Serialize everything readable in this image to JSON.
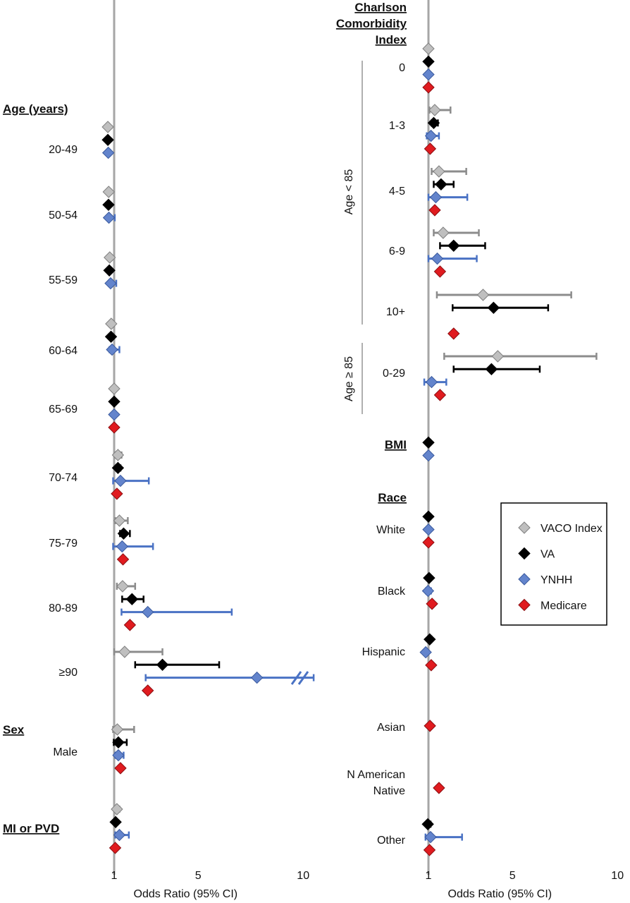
{
  "chart_data": [
    {
      "type": "forest",
      "panel": "left",
      "xlabel": "Odds Ratio (95% CI)",
      "x_ticks": [
        "1",
        "5",
        "10"
      ],
      "xlim": [
        0.6,
        10.5
      ],
      "series_names": [
        "VACO Index",
        "VA",
        "YNHH",
        "Medicare"
      ],
      "colors": {
        "VACO Index": "#a6a6a6",
        "VA": "#000000",
        "YNHH": "#5b7fc7",
        "Medicare": "#e0191e"
      },
      "groups": [
        {
          "header": "Age (years)",
          "rows": [
            {
              "label": "20-49",
              "points": [
                {
                  "series": "VACO Index",
                  "or": 0.7
                },
                {
                  "series": "VA",
                  "or": 0.7
                },
                {
                  "series": "YNHH",
                  "or": 0.72,
                  "lo": 0.7,
                  "hi": 0.82
                }
              ]
            },
            {
              "label": "50-54",
              "points": [
                {
                  "series": "VACO Index",
                  "or": 0.74,
                  "lo": 0.73,
                  "hi": 0.84
                },
                {
                  "series": "VA",
                  "or": 0.73
                },
                {
                  "series": "YNHH",
                  "or": 0.75,
                  "lo": 0.72,
                  "hi": 1.03
                }
              ]
            },
            {
              "label": "55-59",
              "points": [
                {
                  "series": "VACO Index",
                  "or": 0.79,
                  "lo": 0.77,
                  "hi": 0.86
                },
                {
                  "series": "VA",
                  "or": 0.77
                },
                {
                  "series": "YNHH",
                  "or": 0.83,
                  "lo": 0.75,
                  "hi": 1.1
                }
              ]
            },
            {
              "label": "60-64",
              "points": [
                {
                  "series": "VACO Index",
                  "or": 0.86,
                  "lo": 0.83,
                  "hi": 0.98
                },
                {
                  "series": "VA",
                  "or": 0.85
                },
                {
                  "series": "YNHH",
                  "or": 0.9,
                  "lo": 0.78,
                  "hi": 1.25
                }
              ]
            },
            {
              "label": "65-69",
              "points": [
                {
                  "series": "VACO Index",
                  "or": 1.0
                },
                {
                  "series": "VA",
                  "or": 1.0
                },
                {
                  "series": "YNHH",
                  "or": 1.0
                },
                {
                  "series": "Medicare",
                  "or": 1.0
                }
              ]
            },
            {
              "label": "70-74",
              "points": [
                {
                  "series": "VACO Index",
                  "or": 1.18,
                  "lo": 1.05,
                  "hi": 1.35
                },
                {
                  "series": "VA",
                  "or": 1.18,
                  "lo": 1.1,
                  "hi": 1.3
                },
                {
                  "series": "YNHH",
                  "or": 1.3,
                  "lo": 0.95,
                  "hi": 2.65
                },
                {
                  "series": "Medicare",
                  "or": 1.13
                }
              ]
            },
            {
              "label": "75-79",
              "points": [
                {
                  "series": "VACO Index",
                  "or": 1.25,
                  "lo": 1.05,
                  "hi": 1.65
                },
                {
                  "series": "VA",
                  "or": 1.45,
                  "lo": 1.28,
                  "hi": 1.75
                },
                {
                  "series": "YNHH",
                  "or": 1.38,
                  "lo": 0.95,
                  "hi": 2.85
                },
                {
                  "series": "Medicare",
                  "or": 1.42
                }
              ]
            },
            {
              "label": "80-89",
              "points": [
                {
                  "series": "VACO Index",
                  "or": 1.4,
                  "lo": 1.13,
                  "hi": 2.0
                },
                {
                  "series": "VA",
                  "or": 1.85,
                  "lo": 1.38,
                  "hi": 2.4
                },
                {
                  "series": "YNHH",
                  "or": 2.6,
                  "lo": 1.35,
                  "hi": 6.6
                },
                {
                  "series": "Medicare",
                  "or": 1.75
                }
              ]
            },
            {
              "label": "≥90",
              "points": [
                {
                  "series": "VACO Index",
                  "or": 1.5,
                  "lo": 1.0,
                  "hi": 3.3
                },
                {
                  "series": "VA",
                  "or": 3.3,
                  "lo": 2.0,
                  "hi": 6.0
                },
                {
                  "series": "YNHH",
                  "or": 7.8,
                  "lo": 2.5,
                  "hi": 10.5
                },
                {
                  "series": "Medicare",
                  "or": 2.6
                }
              ]
            }
          ]
        },
        {
          "header": "Sex",
          "rows": [
            {
              "label": "Male",
              "points": [
                {
                  "series": "VACO Index",
                  "or": 1.15,
                  "lo": 0.95,
                  "hi": 1.95
                },
                {
                  "series": "VA",
                  "or": 1.2,
                  "lo": 0.98,
                  "hi": 1.6
                },
                {
                  "series": "YNHH",
                  "or": 1.2,
                  "lo": 1.05,
                  "hi": 1.45
                },
                {
                  "series": "Medicare",
                  "or": 1.3
                }
              ]
            }
          ]
        },
        {
          "header": "MI or PVD",
          "rows": [
            {
              "label": "",
              "points": [
                {
                  "series": "VACO Index",
                  "or": 1.13,
                  "lo": 1.05,
                  "hi": 1.25
                },
                {
                  "series": "VA",
                  "or": 1.07
                },
                {
                  "series": "YNHH",
                  "or": 1.25,
                  "lo": 1.05,
                  "hi": 1.7
                },
                {
                  "series": "Medicare",
                  "or": 1.05
                }
              ]
            }
          ]
        }
      ]
    },
    {
      "type": "forest",
      "panel": "right",
      "xlabel": "Odds Ratio (95% CI)",
      "x_ticks": [
        "1",
        "5",
        "10"
      ],
      "xlim": [
        0.6,
        10.5
      ],
      "series_names": [
        "VACO Index",
        "VA",
        "YNHH",
        "Medicare"
      ],
      "bracket_labels": [
        "Age < 85",
        "Age ≥ 85"
      ],
      "groups": [
        {
          "header": [
            "Charlson",
            "Comorbidity",
            "Index"
          ],
          "rows": [
            {
              "label": "0",
              "points": [
                {
                  "series": "VACO Index",
                  "or": 1.0
                },
                {
                  "series": "VA",
                  "or": 1.0
                },
                {
                  "series": "YNHH",
                  "or": 1.0
                },
                {
                  "series": "Medicare",
                  "or": 1.0
                }
              ]
            },
            {
              "label": "1-3",
              "points": [
                {
                  "series": "VACO Index",
                  "or": 1.3,
                  "lo": 1.05,
                  "hi": 2.05
                },
                {
                  "series": "VA",
                  "or": 1.25,
                  "lo": 1.15,
                  "hi": 1.45
                },
                {
                  "series": "YNHH",
                  "or": 1.12,
                  "lo": 0.92,
                  "hi": 1.5
                },
                {
                  "series": "Medicare",
                  "or": 1.08
                }
              ]
            },
            {
              "label": "4-5",
              "points": [
                {
                  "series": "VACO Index",
                  "or": 1.5,
                  "lo": 1.15,
                  "hi": 2.8
                },
                {
                  "series": "VA",
                  "or": 1.6,
                  "lo": 1.25,
                  "hi": 2.2
                },
                {
                  "series": "YNHH",
                  "or": 1.35,
                  "lo": 1.0,
                  "hi": 2.85
                },
                {
                  "series": "Medicare",
                  "or": 1.3
                }
              ]
            },
            {
              "label": "6-9",
              "points": [
                {
                  "series": "VACO Index",
                  "or": 1.7,
                  "lo": 1.25,
                  "hi": 3.4
                },
                {
                  "series": "VA",
                  "or": 2.2,
                  "lo": 1.55,
                  "hi": 3.7
                },
                {
                  "series": "YNHH",
                  "or": 1.42,
                  "lo": 1.0,
                  "hi": 3.3
                },
                {
                  "series": "Medicare",
                  "or": 1.55
                }
              ]
            },
            {
              "label": "10+",
              "points": [
                {
                  "series": "VACO Index",
                  "or": 3.6,
                  "lo": 1.4,
                  "hi": 7.8
                },
                {
                  "series": "VA",
                  "or": 4.1,
                  "lo": 2.15,
                  "hi": 6.7
                },
                {
                  "series": "Medicare",
                  "or": 2.2
                }
              ]
            },
            {
              "label": "0-29",
              "points": [
                {
                  "series": "VACO Index",
                  "or": 4.3,
                  "lo": 1.75,
                  "hi": 9.0
                },
                {
                  "series": "VA",
                  "or": 4.0,
                  "lo": 2.2,
                  "hi": 6.3
                },
                {
                  "series": "YNHH",
                  "or": 1.15,
                  "lo": 0.8,
                  "hi": 1.85
                },
                {
                  "series": "Medicare",
                  "or": 1.55
                }
              ]
            }
          ]
        },
        {
          "header": "BMI",
          "rows": [
            {
              "label": "",
              "points": [
                {
                  "series": "VA",
                  "or": 1.0
                },
                {
                  "series": "YNHH",
                  "or": 1.0
                }
              ]
            }
          ]
        },
        {
          "header": "Race",
          "rows": [
            {
              "label": "White",
              "points": [
                {
                  "series": "VA",
                  "or": 1.0
                },
                {
                  "series": "YNHH",
                  "or": 1.0
                },
                {
                  "series": "Medicare",
                  "or": 1.0
                }
              ]
            },
            {
              "label": "Black",
              "points": [
                {
                  "series": "VA",
                  "or": 1.03
                },
                {
                  "series": "YNHH",
                  "or": 0.98,
                  "lo": 0.88,
                  "hi": 1.12
                },
                {
                  "series": "Medicare",
                  "or": 1.17
                }
              ]
            },
            {
              "label": "Hispanic",
              "points": [
                {
                  "series": "VA",
                  "or": 1.06,
                  "lo": 1.0,
                  "hi": 1.15
                },
                {
                  "series": "YNHH",
                  "or": 0.87,
                  "lo": 0.82,
                  "hi": 0.96
                },
                {
                  "series": "Medicare",
                  "or": 1.13
                }
              ]
            },
            {
              "label": "Asian",
              "points": [
                {
                  "series": "Medicare",
                  "or": 1.07
                }
              ]
            },
            {
              "label": [
                "N American",
                "Native"
              ],
              "points": [
                {
                  "series": "Medicare",
                  "or": 1.5,
                  "lo": 1.45,
                  "hi": 1.55
                }
              ]
            },
            {
              "label": "Other",
              "points": [
                {
                  "series": "VA",
                  "or": 0.97,
                  "lo": 0.92,
                  "hi": 1.1
                },
                {
                  "series": "YNHH",
                  "or": 1.1,
                  "lo": 0.86,
                  "hi": 2.6
                },
                {
                  "series": "Medicare",
                  "or": 1.05
                }
              ]
            }
          ]
        }
      ],
      "legend": {
        "placement": "right-middle",
        "entries": [
          "VACO Index",
          "VA",
          "YNHH",
          "Medicare"
        ]
      }
    }
  ]
}
